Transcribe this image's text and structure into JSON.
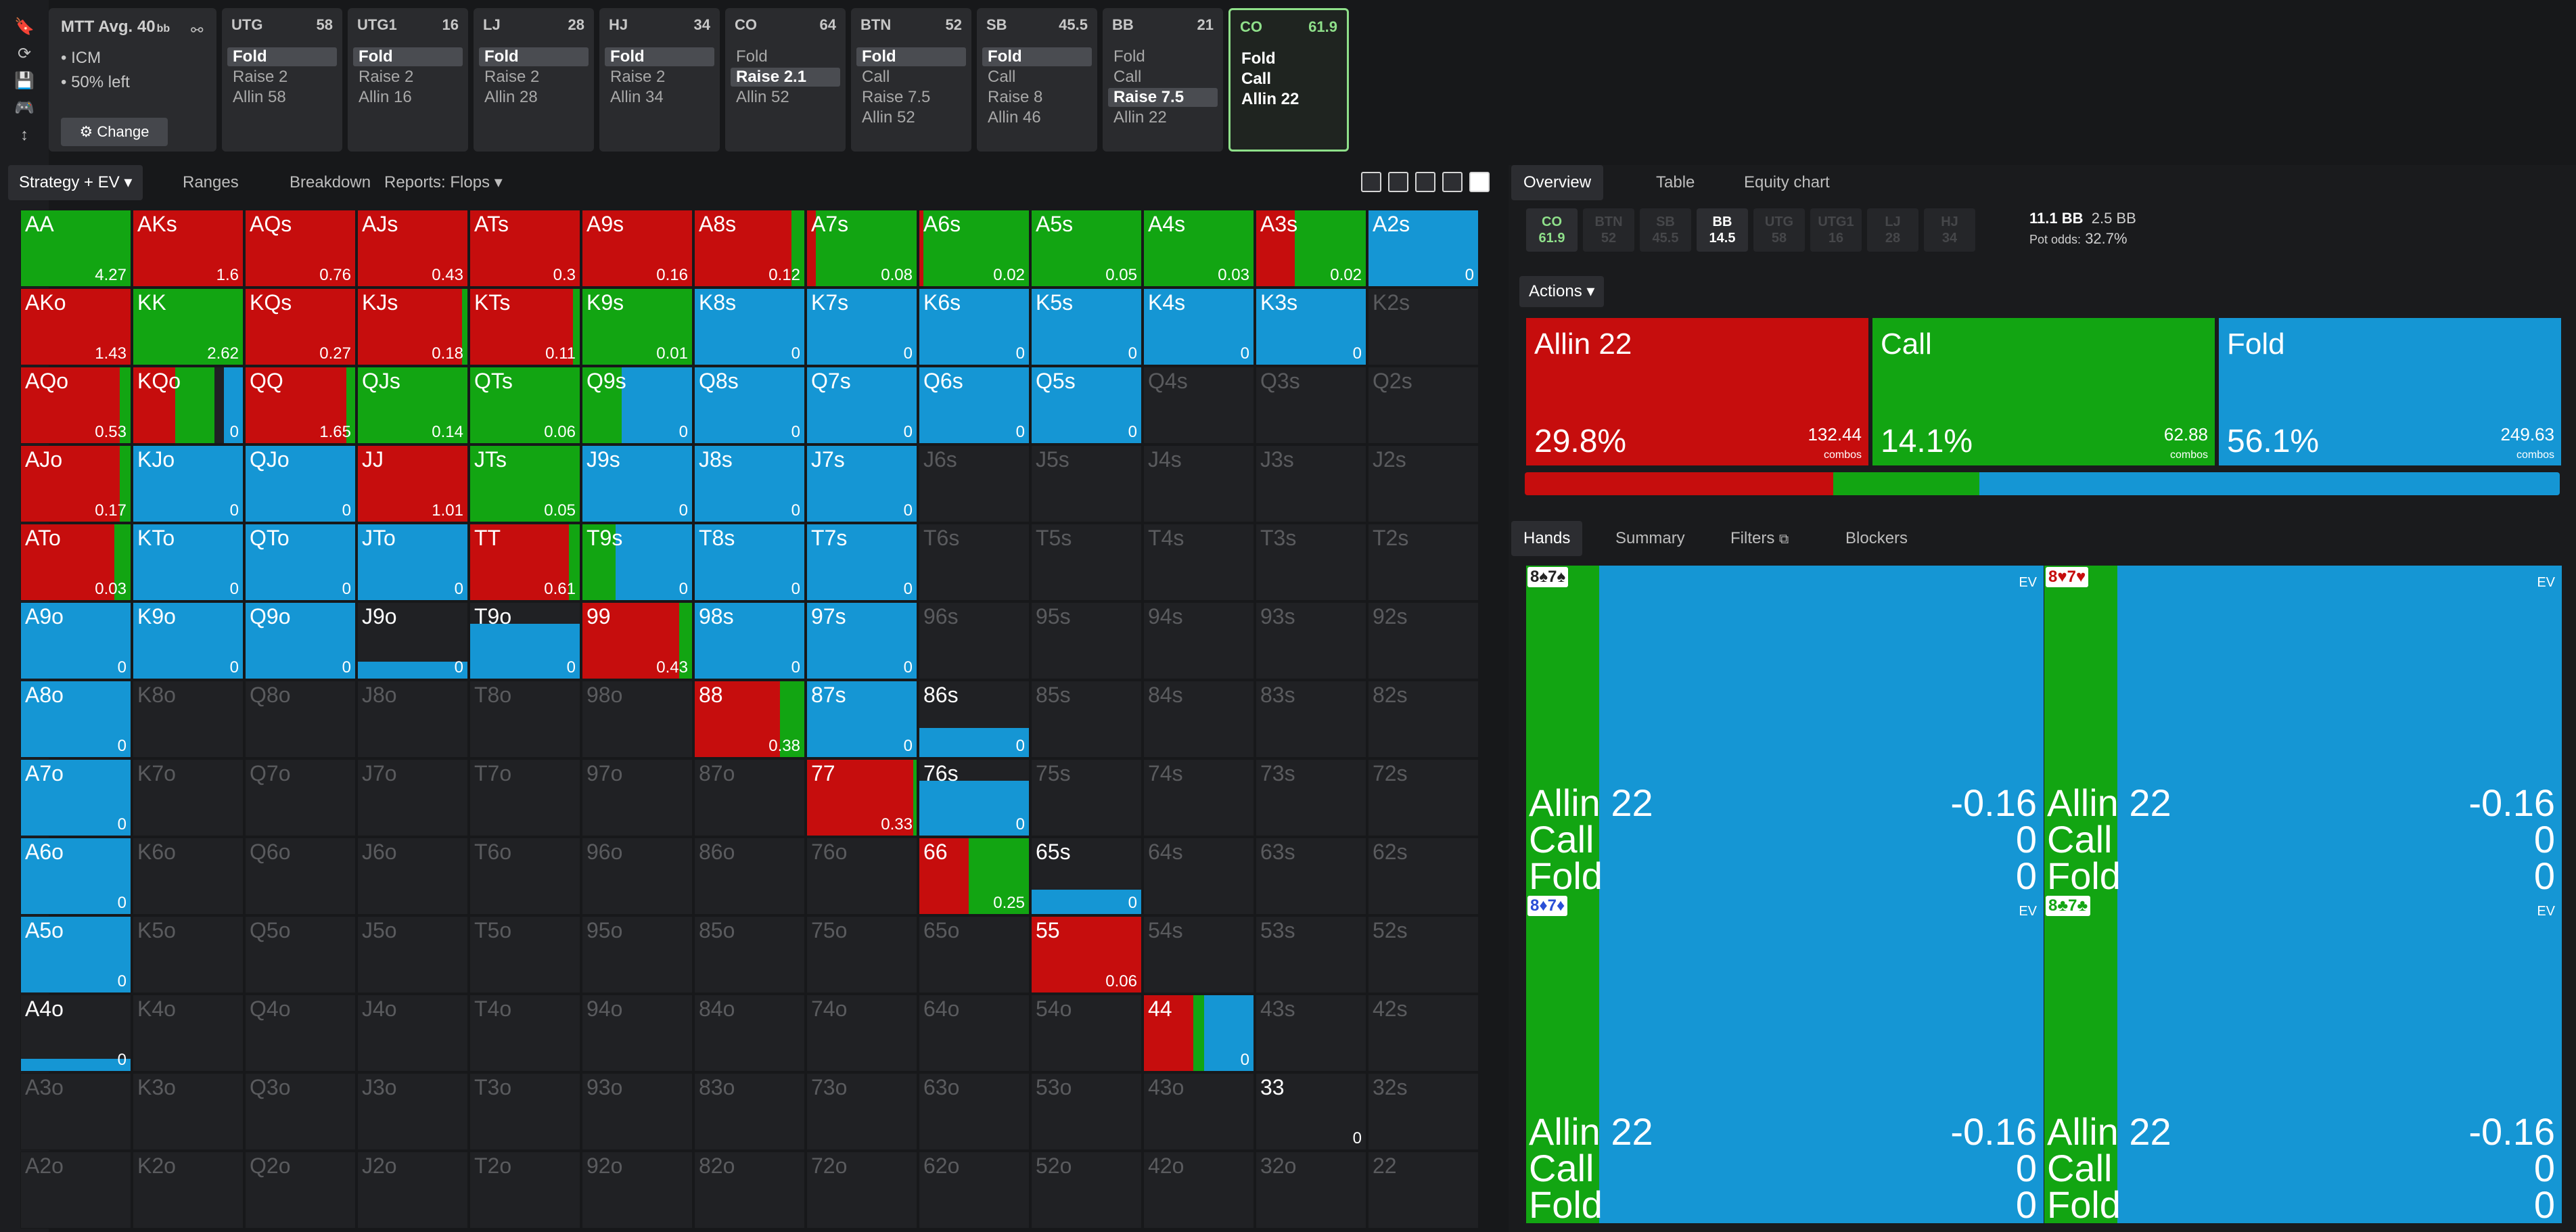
{
  "colors": {
    "allin": "#c60d0d",
    "call": "#12a512",
    "fold": "#1596d4",
    "empty": "#202124"
  },
  "sidebar": {
    "icons": [
      "bookmark-icon",
      "reload-icon",
      "save-icon",
      "gamepad-icon",
      "text-height-icon"
    ]
  },
  "info": {
    "title": "MTT  Avg. 40",
    "unit": "bb",
    "line1": "•  ICM",
    "line2": "•  50% left",
    "change": "⚙ Change"
  },
  "positions": [
    {
      "name": "UTG",
      "stack": "58",
      "actions": [
        "Fold",
        "Raise 2",
        "Allin 58"
      ],
      "sel": 0
    },
    {
      "name": "UTG1",
      "stack": "16",
      "actions": [
        "Fold",
        "Raise 2",
        "Allin 16"
      ],
      "sel": 0
    },
    {
      "name": "LJ",
      "stack": "28",
      "actions": [
        "Fold",
        "Raise 2",
        "Allin 28"
      ],
      "sel": 0
    },
    {
      "name": "HJ",
      "stack": "34",
      "actions": [
        "Fold",
        "Raise 2",
        "Allin 34"
      ],
      "sel": 0
    },
    {
      "name": "CO",
      "stack": "64",
      "actions": [
        "Fold",
        "Raise 2.1",
        "Allin 52"
      ],
      "sel": 1
    },
    {
      "name": "BTN",
      "stack": "52",
      "actions": [
        "Fold",
        "Call",
        "Raise 7.5",
        "Allin 52"
      ],
      "sel": 0
    },
    {
      "name": "SB",
      "stack": "45.5",
      "actions": [
        "Fold",
        "Call",
        "Raise 8",
        "Allin 46"
      ],
      "sel": 0
    },
    {
      "name": "BB",
      "stack": "21",
      "actions": [
        "Fold",
        "Call",
        "Raise 7.5",
        "Allin 22"
      ],
      "sel": 2
    },
    {
      "name": "CO",
      "stack": "61.9",
      "actions": [
        "Fold",
        "Call",
        "Allin 22"
      ],
      "sel": -1
    }
  ],
  "tabs": {
    "strategy": "Strategy + EV",
    "ranges": "Ranges",
    "breakdown": "Breakdown",
    "reports": "Reports: Flops"
  },
  "matrix": [
    [
      "AA:c4.27",
      "AKs:a1.6",
      "AQs:a0.76",
      "AJs:a0.43",
      "ATs:a0.3",
      "A9s:a0.16",
      "A8s:a0.12",
      "A7s:c0.08",
      "A6s:c0.02",
      "A5s:c0.05",
      "A4s:c0.03",
      "A3s:a0.02",
      "A2s:f0"
    ],
    [
      "AKo:a1.43",
      "KK:c2.62",
      "KQs:a0.27",
      "KJs:a0.18",
      "KTs:a0.11",
      "K9s:c0.01",
      "K8s:f0",
      "K7s:f0",
      "K6s:f0",
      "K5s:f0",
      "K4s:f0",
      "K3s:f0",
      "K2s:e"
    ],
    [
      "AQo:a0.53",
      "KQo:m0",
      "QQ:a1.65",
      "QJs:c0.14",
      "QTs:c0.06",
      "Q9s:m0",
      "Q8s:f0",
      "Q7s:f0",
      "Q6s:f0",
      "Q5s:f0",
      "Q4s:e",
      "Q3s:e",
      "Q2s:e"
    ],
    [
      "AJo:a0.17",
      "KJo:f0",
      "QJo:f0",
      "JJ:a1.01",
      "JTs:c0.05",
      "J9s:f0",
      "J8s:f0",
      "J7s:f0",
      "J6s:e",
      "J5s:e",
      "J4s:e",
      "J3s:e",
      "J2s:e"
    ],
    [
      "ATo:a0.03",
      "KTo:f0",
      "QTo:f0",
      "JTo:f0",
      "TT:a0.61",
      "T9s:m0",
      "T8s:f0",
      "T7s:f0",
      "T6s:e",
      "T5s:e",
      "T4s:e",
      "T3s:e",
      "T2s:e"
    ],
    [
      "A9o:f0",
      "K9o:f0",
      "Q9o:f0",
      "J9o:p0",
      "T9o:p0",
      "99:a0.43",
      "98s:f0",
      "97s:f0",
      "96s:e",
      "95s:e",
      "94s:e",
      "93s:e",
      "92s:e"
    ],
    [
      "A8o:f0",
      "K8o:e",
      "Q8o:e",
      "J8o:e",
      "T8o:e",
      "98o:e",
      "88:a0.38",
      "87s:f0",
      "86s:p0",
      "85s:e",
      "84s:e",
      "83s:e",
      "82s:e"
    ],
    [
      "A7o:f0",
      "K7o:e",
      "Q7o:e",
      "J7o:e",
      "T7o:e",
      "97o:e",
      "87o:e",
      "77:a0.33",
      "76s:p0",
      "75s:e",
      "74s:e",
      "73s:e",
      "72s:e"
    ],
    [
      "A6o:f0",
      "K6o:e",
      "Q6o:e",
      "J6o:e",
      "T6o:e",
      "96o:e",
      "86o:e",
      "76o:e",
      "66:a0.25",
      "65s:p0",
      "64s:e",
      "63s:e",
      "62s:e"
    ],
    [
      "A5o:f0",
      "K5o:e",
      "Q5o:e",
      "J5o:e",
      "T5o:e",
      "95o:e",
      "85o:e",
      "75o:e",
      "65o:e",
      "55:a0.06",
      "54s:e",
      "53s:e",
      "52s:e"
    ],
    [
      "A4o:p0",
      "K4o:e",
      "Q4o:e",
      "J4o:e",
      "T4o:e",
      "94o:e",
      "84o:e",
      "74o:e",
      "64o:e",
      "54o:e",
      "44:m0",
      "43s:e",
      "42s:e"
    ],
    [
      "A3o:e",
      "K3o:e",
      "Q3o:e",
      "J3o:e",
      "T3o:e",
      "93o:e",
      "83o:e",
      "73o:e",
      "63o:e",
      "53o:e",
      "43o:e",
      "33:z0",
      "32s:e"
    ],
    [
      "A2o:e",
      "K2o:e",
      "Q2o:e",
      "J2o:e",
      "T2o:e",
      "92o:e",
      "82o:e",
      "72o:e",
      "62o:e",
      "52o:e",
      "42o:e",
      "32o:e",
      "22:e"
    ]
  ],
  "right": {
    "tabs": [
      "Overview",
      "Table",
      "Equity chart"
    ],
    "chips": [
      {
        "n": "CO",
        "v": "61.9"
      },
      {
        "n": "BTN",
        "v": "52"
      },
      {
        "n": "SB",
        "v": "45.5"
      },
      {
        "n": "BB",
        "v": "14.5"
      },
      {
        "n": "UTG",
        "v": "58"
      },
      {
        "n": "UTG1",
        "v": "16"
      },
      {
        "n": "LJ",
        "v": "28"
      },
      {
        "n": "HJ",
        "v": "34"
      }
    ],
    "pot": "11.1 BB",
    "potbb": "2.5 BB",
    "odds_label": "Pot odds:",
    "odds": "32.7%",
    "actions_label": "Actions",
    "actions": [
      {
        "name": "Allin 22",
        "pct": "29.8%",
        "combos": "132.44",
        "frac": 0.298,
        "color": "#c60d0d"
      },
      {
        "name": "Call",
        "pct": "14.1%",
        "combos": "62.88",
        "frac": 0.141,
        "color": "#12a512"
      },
      {
        "name": "Fold",
        "pct": "56.1%",
        "combos": "249.63",
        "frac": 0.561,
        "color": "#1596d4"
      }
    ],
    "combos_label": "combos",
    "lower_tabs": [
      "Hands",
      "Summary",
      "Filters",
      "Blockers"
    ],
    "hands": [
      {
        "card": "8♠7♠",
        "suit": "#222"
      },
      {
        "card": "8♥7♥",
        "suit": "#c60d0d"
      },
      {
        "card": "8♦7♦",
        "suit": "#2a4fd6"
      },
      {
        "card": "8♣7♣",
        "suit": "#12a512"
      }
    ],
    "hand_rows": [
      {
        "a": "Allin 22",
        "v": "-0.16"
      },
      {
        "a": "Call",
        "v": "0"
      },
      {
        "a": "Fold",
        "v": "0"
      }
    ],
    "ev_label": "EV"
  }
}
